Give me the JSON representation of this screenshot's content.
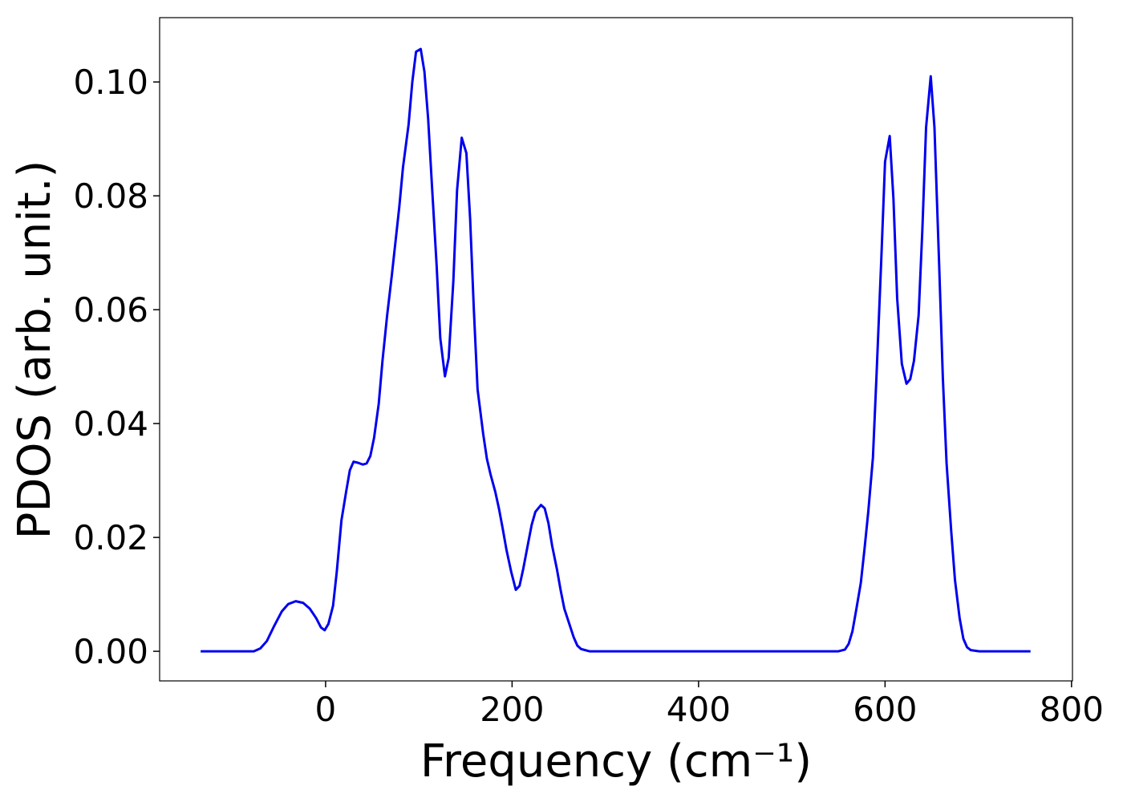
{
  "chart_data": {
    "type": "line",
    "xlabel": "Frequency (cm⁻¹)",
    "ylabel": "PDOS (arb. unit.)",
    "xlim": [
      -178,
      801
    ],
    "ylim": [
      -0.0052,
      0.1113
    ],
    "xticks": [
      0,
      200,
      400,
      600,
      800
    ],
    "yticks": [
      {
        "value": 0,
        "label": "0.00"
      },
      {
        "value": 0.02,
        "label": "0.02"
      },
      {
        "value": 0.04,
        "label": "0.04"
      },
      {
        "value": 0.06,
        "label": "0.06"
      },
      {
        "value": 0.08,
        "label": "0.08"
      },
      {
        "value": 0.1,
        "label": "0.10"
      }
    ],
    "grid": false,
    "x": [
      -134,
      -77,
      -70,
      -63,
      -55,
      -47,
      -40,
      -32,
      -24,
      -17,
      -10,
      -5,
      -1,
      3,
      8,
      12,
      17,
      22,
      26,
      30,
      35,
      40,
      44,
      48,
      52,
      57,
      61,
      66,
      71,
      75,
      79,
      83,
      89,
      93,
      97,
      102,
      106,
      110,
      114,
      119,
      123,
      128,
      132,
      137,
      141,
      146,
      151,
      155,
      159,
      163,
      169,
      173,
      177,
      182,
      186,
      190,
      194,
      199,
      204,
      208,
      212,
      217,
      221,
      225,
      231,
      235,
      239,
      243,
      248,
      252,
      256,
      262,
      266,
      270,
      274,
      283,
      550,
      557,
      561,
      565,
      569,
      574,
      578,
      582,
      587,
      591,
      596,
      600,
      605,
      609,
      613,
      618,
      623,
      627,
      631,
      636,
      640,
      644,
      649,
      653,
      658,
      662,
      666,
      671,
      675,
      680,
      684,
      688,
      692,
      701,
      756
    ],
    "series": [
      {
        "color": "#0000ee",
        "values": [
          0,
          0,
          0.0005,
          0.0018,
          0.0045,
          0.007,
          0.0083,
          0.0088,
          0.0085,
          0.0075,
          0.0058,
          0.0042,
          0.0037,
          0.0048,
          0.008,
          0.014,
          0.023,
          0.028,
          0.0318,
          0.0333,
          0.0331,
          0.0328,
          0.033,
          0.0343,
          0.0375,
          0.0435,
          0.051,
          0.059,
          0.066,
          0.072,
          0.078,
          0.085,
          0.0925,
          0.1,
          0.1053,
          0.1058,
          0.1018,
          0.0935,
          0.082,
          0.068,
          0.055,
          0.0483,
          0.0515,
          0.065,
          0.081,
          0.0902,
          0.0875,
          0.076,
          0.06,
          0.046,
          0.0382,
          0.0338,
          0.031,
          0.028,
          0.025,
          0.0215,
          0.0178,
          0.014,
          0.0108,
          0.0115,
          0.0145,
          0.0188,
          0.0222,
          0.0245,
          0.0257,
          0.0251,
          0.0225,
          0.0185,
          0.0145,
          0.0108,
          0.0075,
          0.0045,
          0.0025,
          0.001,
          0.0004,
          0,
          0,
          0.0003,
          0.0013,
          0.0035,
          0.0072,
          0.012,
          0.018,
          0.0245,
          0.034,
          0.049,
          0.069,
          0.086,
          0.0905,
          0.0795,
          0.062,
          0.0505,
          0.047,
          0.0478,
          0.051,
          0.059,
          0.074,
          0.092,
          0.101,
          0.092,
          0.068,
          0.048,
          0.033,
          0.021,
          0.0125,
          0.0058,
          0.0022,
          0.0007,
          0.0002,
          0,
          0
        ]
      }
    ]
  }
}
